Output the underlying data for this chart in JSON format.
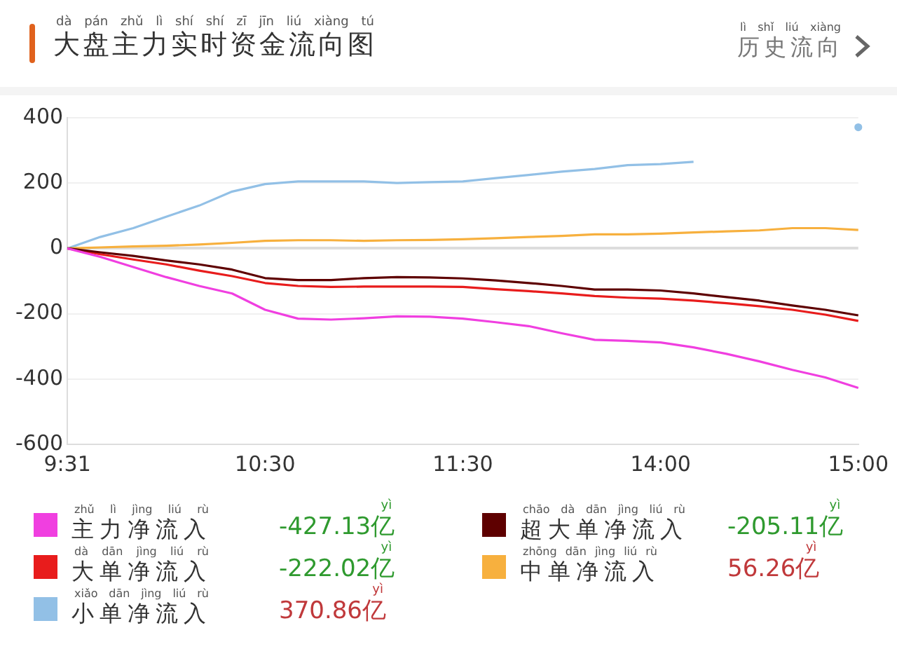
{
  "chart_data": {
    "type": "line",
    "title": "大盘主力实时资金流向图",
    "categories": [
      "9:31",
      null,
      null,
      null,
      null,
      null,
      "10:30",
      null,
      null,
      null,
      null,
      null,
      "11:30",
      null,
      null,
      null,
      null,
      null,
      "14:00",
      null,
      null,
      null,
      null,
      null,
      "15:00"
    ],
    "series": [
      {
        "name": "主力净流入",
        "color": "#f03fe0",
        "values": [
          0,
          -26,
          -57,
          -88,
          -115,
          -138,
          -188,
          -215,
          -218,
          -214,
          -208,
          -209,
          -215,
          -226,
          -238,
          -260,
          -280,
          -283,
          -288,
          -303,
          -323,
          -346,
          -372,
          -395,
          -427.13
        ]
      },
      {
        "name": "超大单净流入",
        "color": "#5e0000",
        "values": [
          0,
          -12,
          -23,
          -37,
          -49,
          -65,
          -91,
          -97,
          -97,
          -91,
          -88,
          -89,
          -92,
          -98,
          -106,
          -115,
          -126,
          -126,
          -129,
          -138,
          -149,
          -160,
          -175,
          -188,
          -205.11
        ]
      },
      {
        "name": "大单净流入",
        "color": "#e81c1c",
        "values": [
          0,
          -18,
          -34,
          -49,
          -68,
          -85,
          -106,
          -115,
          -118,
          -117,
          -117,
          -117,
          -118,
          -125,
          -131,
          -138,
          -146,
          -151,
          -154,
          -160,
          -168,
          -177,
          -188,
          -203,
          -222.02
        ]
      },
      {
        "name": "中单净流入",
        "color": "#f7b03e",
        "values": [
          0,
          3,
          6,
          8,
          12,
          17,
          23,
          25,
          25,
          23,
          25,
          26,
          28,
          31,
          35,
          38,
          43,
          43,
          45,
          49,
          52,
          55,
          62,
          62,
          56.26
        ]
      },
      {
        "name": "小单净流入",
        "color": "#92c0e6",
        "values": [
          0,
          35,
          62,
          97,
          131,
          174,
          197,
          205,
          205,
          205,
          200,
          203,
          205,
          215,
          225,
          235,
          243,
          255,
          258,
          265,
          null,
          null,
          null,
          null,
          370.86
        ]
      }
    ],
    "ylim": [
      -600,
      400
    ],
    "yticks": [
      -600,
      -400,
      -200,
      0,
      200,
      400
    ],
    "grid": "y",
    "legend": "bottom",
    "marker": "none",
    "annotations": [
      "dà pán zhǔ lì shí shí zī jīn liú xiàng tú",
      "历史流向",
      "lì shǐ liú xiàng",
      "zhǔ lì jìng liú rù",
      "chāo dà dān jìng liú rù",
      "dà dān jìng liú rù",
      "zhōng dān jìng liú rù",
      "xiǎo dān jìng liú rù",
      "-427.13亿",
      "-205.11亿",
      "-222.02亿",
      "56.26亿",
      "370.86亿",
      "yì",
      "yì",
      "yì",
      "yì",
      "yì"
    ]
  }
}
